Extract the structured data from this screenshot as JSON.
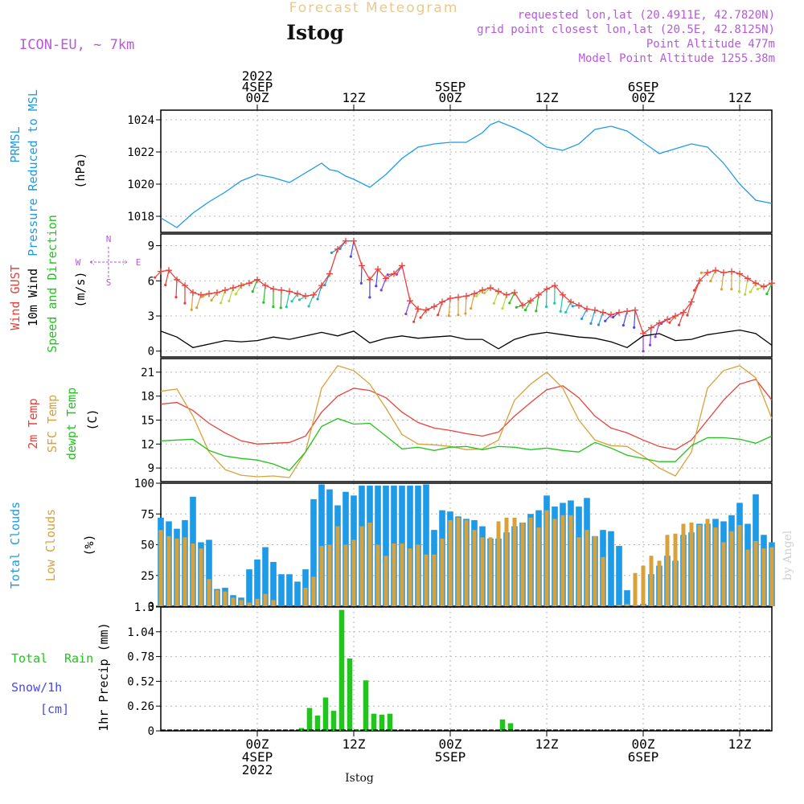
{
  "header": {
    "title": "Forecast Meteogram",
    "location": "Istog",
    "model": "ICON-EU, ~ 7km",
    "requested": "requested lon,lat (20.4911E, 42.7820N)",
    "grid": "grid point closest lon,lat (20.5E, 42.8125N)",
    "altitude": "Point Altitude 477m",
    "model_altitude": "Model Point Altitude 1255.38m",
    "bottom_label": "Istog",
    "watermark": "by Angel"
  },
  "colors": {
    "pressure": "#1e9be6",
    "gust": "#e8423a",
    "wind": "#000000",
    "temp2m": "#e8423a",
    "sfc": "#d9a13a",
    "dewpt": "#22c41e",
    "total_cloud": "#1e9be6",
    "low_cloud": "#d9a13a",
    "rain": "#22c41e",
    "snow": "#4848e8",
    "meta": "#b65ad8"
  },
  "time_axis": {
    "top_labels": [
      {
        "lines": [
          "2022",
          "4SEP",
          "00Z"
        ],
        "hour": 12
      },
      {
        "lines": [
          "12Z"
        ],
        "hour": 24
      },
      {
        "lines": [
          "5SEP",
          "00Z"
        ],
        "hour": 36
      },
      {
        "lines": [
          "12Z"
        ],
        "hour": 48
      },
      {
        "lines": [
          "6SEP",
          "00Z"
        ],
        "hour": 60
      },
      {
        "lines": [
          "12Z"
        ],
        "hour": 72
      }
    ],
    "bottom_labels": [
      {
        "lines": [
          "00Z",
          "4SEP",
          "2022"
        ],
        "hour": 12
      },
      {
        "lines": [
          "12Z"
        ],
        "hour": 24
      },
      {
        "lines": [
          "00Z",
          "5SEP"
        ],
        "hour": 36
      },
      {
        "lines": [
          "12Z"
        ],
        "hour": 48
      },
      {
        "lines": [
          "00Z",
          "6SEP"
        ],
        "hour": 60
      },
      {
        "lines": [
          "12Z"
        ],
        "hour": 72
      }
    ]
  },
  "panels": {
    "pressure": {
      "labels": [
        "PRMSL",
        "Pressure Reduced to MSL"
      ],
      "unit": "(hPa)",
      "ticks": [
        "1018",
        "1020",
        "1022",
        "1024"
      ]
    },
    "wind": {
      "labels": [
        "Wind GUST",
        "10m Wind",
        "Speed and Direction"
      ],
      "unit": "(m/s)",
      "ticks": [
        "0",
        "3",
        "6",
        "9"
      ],
      "compass": {
        "n": "N",
        "s": "S",
        "e": "E",
        "w": "W"
      }
    },
    "temp": {
      "labels": [
        "2m Temp",
        "SFC Temp",
        "dewpt Temp"
      ],
      "unit": "(C)",
      "ticks": [
        "9",
        "12",
        "15",
        "18",
        "21"
      ]
    },
    "clouds": {
      "labels": [
        "Total Clouds",
        "Low Clouds"
      ],
      "unit": "(%)",
      "ticks": [
        "0",
        "25",
        "50",
        "75",
        "100"
      ]
    },
    "precip": {
      "labels": [
        "Total Rain",
        "Snow/1h",
        "[cm]"
      ],
      "axis_label": "1hr Precip (mm)",
      "ticks": [
        "0",
        "0.26",
        "0.52",
        "0.78",
        "1.04",
        "1.3"
      ]
    }
  },
  "chart_data": [
    {
      "type": "line",
      "name": "PRMSL (hPa)",
      "x": [
        0,
        2,
        4,
        6,
        8,
        10,
        12,
        14,
        16,
        18,
        20,
        21,
        22,
        23,
        24,
        26,
        28,
        30,
        32,
        34,
        36,
        38,
        40,
        41,
        42,
        44,
        46,
        48,
        50,
        52,
        54,
        56,
        58,
        60,
        62,
        64,
        66,
        68,
        70,
        72,
        74,
        76
      ],
      "y": [
        1017.9,
        1017.3,
        1018.2,
        1018.9,
        1019.5,
        1020.2,
        1020.6,
        1020.4,
        1020.1,
        1020.7,
        1021.3,
        1020.9,
        1020.8,
        1020.5,
        1020.3,
        1019.8,
        1020.6,
        1021.6,
        1022.3,
        1022.5,
        1022.6,
        1022.6,
        1023.2,
        1023.7,
        1023.9,
        1023.5,
        1023.0,
        1022.3,
        1022.1,
        1022.5,
        1023.4,
        1023.6,
        1023.3,
        1022.6,
        1021.9,
        1022.2,
        1022.5,
        1022.3,
        1021.3,
        1020.0,
        1019.0,
        1018.8
      ],
      "ylim": [
        1017,
        1024.6
      ]
    },
    {
      "type": "line",
      "name": "Wind GUST (m/s)",
      "x": [
        0,
        1,
        2,
        3,
        4,
        5,
        6,
        7,
        8,
        9,
        10,
        11,
        12,
        13,
        14,
        15,
        16,
        17,
        18,
        19,
        20,
        21,
        22,
        23,
        24,
        25,
        26,
        27,
        28,
        29,
        30,
        31,
        32,
        33,
        34,
        35,
        36,
        37,
        38,
        39,
        40,
        41,
        42,
        43,
        44,
        45,
        46,
        47,
        48,
        49,
        50,
        51,
        52,
        53,
        54,
        55,
        56,
        57,
        58,
        59,
        60,
        61,
        62,
        63,
        64,
        65,
        66,
        67,
        68,
        69,
        70,
        71,
        72,
        73,
        74,
        75,
        76
      ],
      "y": [
        6.8,
        6.9,
        6.1,
        5.6,
        5.0,
        4.8,
        4.9,
        5.0,
        5.2,
        5.4,
        5.6,
        5.8,
        6.1,
        5.6,
        5.3,
        5.2,
        5.1,
        4.9,
        4.7,
        4.8,
        5.6,
        6.6,
        8.7,
        9.4,
        9.4,
        7.3,
        6.1,
        7.0,
        6.2,
        6.6,
        7.3,
        4.3,
        3.6,
        3.5,
        3.8,
        4.2,
        4.5,
        4.6,
        4.7,
        4.9,
        5.2,
        5.4,
        5.1,
        4.8,
        5.0,
        3.9,
        4.3,
        4.8,
        5.3,
        5.6,
        4.8,
        4.2,
        3.9,
        3.6,
        3.5,
        3.3,
        3.1,
        3.3,
        3.4,
        3.5,
        1.5,
        2.0,
        2.4,
        2.7,
        3.0,
        3.3,
        4.2,
        6.0,
        6.7,
        6.9,
        6.7,
        6.8,
        6.6,
        6.2,
        5.8,
        5.5,
        5.8
      ],
      "ylim": [
        -0.5,
        10
      ]
    },
    {
      "type": "line",
      "name": "10m Wind (m/s)",
      "x": [
        0,
        2,
        4,
        6,
        8,
        10,
        12,
        14,
        16,
        18,
        20,
        22,
        24,
        26,
        28,
        30,
        32,
        34,
        36,
        38,
        40,
        42,
        44,
        46,
        48,
        50,
        52,
        54,
        56,
        58,
        60,
        62,
        64,
        66,
        68,
        70,
        72,
        74,
        76
      ],
      "y": [
        1.7,
        1.2,
        0.3,
        0.6,
        0.9,
        0.8,
        0.9,
        1.2,
        1.0,
        1.3,
        1.6,
        1.3,
        1.7,
        0.7,
        1.1,
        1.3,
        1.1,
        1.2,
        1.3,
        1.0,
        1.0,
        0.2,
        1.0,
        1.4,
        1.6,
        1.4,
        1.2,
        1.1,
        0.8,
        0.3,
        1.3,
        1.5,
        0.9,
        1.0,
        1.4,
        1.6,
        1.8,
        1.5,
        0.5
      ],
      "ylim": [
        -0.5,
        10
      ]
    },
    {
      "type": "line",
      "name": "Temperatures (C)",
      "x": [
        0,
        2,
        4,
        6,
        8,
        10,
        12,
        14,
        16,
        18,
        20,
        22,
        24,
        26,
        28,
        30,
        32,
        34,
        36,
        38,
        40,
        42,
        44,
        46,
        48,
        50,
        52,
        54,
        56,
        58,
        60,
        62,
        64,
        66,
        68,
        70,
        72,
        74,
        76
      ],
      "series": [
        {
          "name": "2m Temp",
          "values": [
            17.0,
            17.2,
            16.2,
            14.6,
            13.4,
            12.4,
            12.0,
            12.1,
            12.2,
            13.0,
            16.0,
            18.0,
            19.0,
            18.7,
            17.8,
            16.0,
            14.7,
            14.0,
            13.7,
            13.3,
            13.0,
            13.5,
            15.5,
            17.2,
            18.8,
            19.3,
            17.8,
            15.5,
            14.0,
            13.4,
            12.5,
            11.7,
            11.3,
            12.5,
            15.0,
            17.5,
            19.5,
            20.1,
            17.5
          ]
        },
        {
          "name": "SFC Temp",
          "values": [
            18.6,
            18.9,
            15.5,
            11.0,
            8.8,
            8.1,
            7.9,
            8.0,
            7.8,
            11.0,
            19.0,
            21.8,
            21.2,
            19.5,
            16.5,
            13.2,
            12.0,
            11.9,
            11.7,
            11.3,
            11.4,
            12.5,
            17.5,
            19.5,
            21.0,
            19.0,
            15.0,
            12.5,
            11.8,
            11.7,
            10.5,
            9.0,
            8.0,
            11.0,
            19.0,
            21.2,
            21.8,
            20.3,
            15.2
          ]
        },
        {
          "name": "dewpt Temp",
          "values": [
            12.4,
            12.5,
            12.6,
            11.2,
            10.5,
            10.2,
            10.0,
            9.5,
            8.7,
            11.0,
            14.2,
            15.2,
            14.5,
            14.6,
            13.0,
            11.4,
            11.6,
            11.2,
            11.6,
            11.7,
            11.3,
            11.7,
            11.6,
            11.3,
            11.5,
            11.2,
            11.0,
            12.2,
            11.5,
            10.6,
            10.2,
            9.8,
            9.8,
            11.8,
            12.8,
            12.8,
            12.6,
            12.1,
            13.0
          ]
        }
      ],
      "ylim": [
        7.3,
        22.7
      ]
    },
    {
      "type": "bar",
      "name": "Clouds (%)",
      "x": [
        0,
        1,
        2,
        3,
        4,
        5,
        6,
        7,
        8,
        9,
        10,
        11,
        12,
        13,
        14,
        15,
        16,
        17,
        18,
        19,
        20,
        21,
        22,
        23,
        24,
        25,
        26,
        27,
        28,
        29,
        30,
        31,
        32,
        33,
        34,
        35,
        36,
        37,
        38,
        39,
        40,
        41,
        42,
        43,
        44,
        45,
        46,
        47,
        48,
        49,
        50,
        51,
        52,
        53,
        54,
        55,
        56,
        57,
        58,
        59,
        60,
        61,
        62,
        63,
        64,
        65,
        66,
        67,
        68,
        69,
        70,
        71,
        72,
        73,
        74,
        75,
        76
      ],
      "series": [
        {
          "name": "Total Clouds",
          "values": [
            72,
            69,
            63,
            70,
            89,
            52,
            54,
            14,
            15,
            9,
            7,
            30,
            38,
            48,
            36,
            26,
            26,
            20,
            30,
            87,
            99,
            95,
            82,
            93,
            90,
            98,
            98,
            98,
            98,
            98,
            98,
            98,
            98,
            99,
            62,
            78,
            77,
            73,
            71,
            70,
            65,
            55,
            55,
            60,
            65,
            68,
            75,
            78,
            90,
            81,
            84,
            86,
            81,
            88,
            57,
            62,
            61,
            49,
            13,
            1,
            2,
            26,
            33,
            41,
            37,
            58,
            60,
            67,
            67,
            71,
            69,
            74,
            84,
            67,
            91,
            58,
            52
          ]
        },
        {
          "name": "Low Clouds",
          "values": [
            62,
            57,
            55,
            56,
            51,
            47,
            22,
            13,
            12,
            7,
            5,
            3,
            6,
            10,
            5,
            0,
            0,
            0,
            15,
            24,
            49,
            50,
            65,
            50,
            54,
            65,
            68,
            50,
            41,
            51,
            51,
            47,
            50,
            42,
            42,
            55,
            70,
            72,
            70,
            62,
            56,
            56,
            69,
            72,
            72,
            68,
            72,
            64,
            78,
            71,
            74,
            74,
            56,
            62,
            57,
            40,
            0,
            1,
            2,
            27,
            33,
            41,
            37,
            58,
            59,
            67,
            68,
            66,
            71,
            64,
            52,
            61,
            66,
            46,
            53,
            47,
            48
          ]
        }
      ],
      "ylim": [
        0,
        100
      ]
    },
    {
      "type": "bar",
      "name": "1hr Precip (mm)",
      "x": [
        17,
        18,
        19,
        20,
        21,
        22,
        23,
        24,
        25,
        26,
        27,
        28,
        29,
        42,
        43
      ],
      "series": [
        {
          "name": "Total Rain",
          "values": [
            0.03,
            0.24,
            0.16,
            0.35,
            0.21,
            1.27,
            0.76,
            0.01,
            0.53,
            0.18,
            0.17,
            0.18,
            0.0,
            0.12,
            0.08
          ]
        },
        {
          "name": "Snow/1h",
          "values": [
            0,
            0,
            0,
            0,
            0,
            0,
            0,
            0,
            0,
            0,
            0,
            0,
            0,
            0,
            0
          ]
        }
      ],
      "ylim": [
        0,
        1.3
      ]
    }
  ]
}
